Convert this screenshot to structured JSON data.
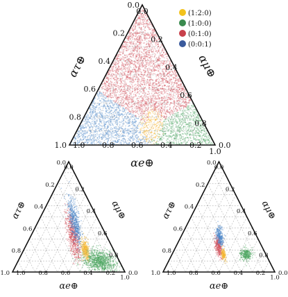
{
  "legend": [
    {
      "label": "(1:2:0)",
      "color": "#f2c21d"
    },
    {
      "label": "(1:0:0)",
      "color": "#3a8a4e"
    },
    {
      "label": "(0:1:0)",
      "color": "#c8414b"
    },
    {
      "label": "(0:0:1)",
      "color": "#3a5a9c"
    }
  ],
  "axes": {
    "bottom": "αe⊕",
    "left": "ατ⊕",
    "right": "αμ⊕"
  },
  "ticks": [
    "0.0",
    "0.2",
    "0.4",
    "0.6",
    "0.8",
    "1.0"
  ],
  "chart_data": [
    {
      "type": "scatter",
      "coordinate_system": "ternary",
      "axes": {
        "bottom": "αe⊕",
        "left": "ατ⊕",
        "right": "αμ⊕"
      },
      "ticks": [
        0.0,
        0.2,
        0.4,
        0.6,
        0.8,
        1.0
      ],
      "legend_placement": "top-right",
      "series": [
        {
          "name": "(1:2:0)",
          "color": "#f5b52e",
          "region": {
            "e_min": 0.4,
            "e_max": 0.6,
            "mu_min": 0.33,
            "mu_max": 0.55
          }
        },
        {
          "name": "(1:0:0)",
          "color": "#49a35e",
          "region": {
            "e_min": 0.5,
            "e_max": 1.0,
            "mu_min": 0.0,
            "mu_max": 0.45
          }
        },
        {
          "name": "(0:1:0)",
          "color": "#d24b57",
          "region": {
            "e_min": 0.0,
            "e_max": 0.5,
            "mu_min": 0.25,
            "mu_max": 1.0
          }
        },
        {
          "name": "(0:0:1)",
          "color": "#4a86c8",
          "region": {
            "e_min": 0.0,
            "e_max": 0.55,
            "mu_min": 0.0,
            "mu_max": 0.3
          }
        }
      ]
    },
    {
      "type": "scatter",
      "coordinate_system": "ternary",
      "axes": {
        "bottom": "αe⊕",
        "left": "ατ⊕",
        "right": "αμ⊕"
      },
      "ticks": [
        0.0,
        0.2,
        0.4,
        0.6,
        0.8,
        1.0
      ],
      "series": [
        {
          "name": "(1:0:0)",
          "color": "#49a35e",
          "center": {
            "e": 0.72,
            "mu": 0.18
          },
          "spread": "large"
        },
        {
          "name": "(0:1:0)",
          "color": "#d24b57",
          "center": {
            "e": 0.38,
            "mu": 0.3
          },
          "spread": "medium"
        },
        {
          "name": "(0:0:1)",
          "color": "#4a86c8",
          "center": {
            "e": 0.33,
            "mu": 0.22
          },
          "spread": "medium"
        },
        {
          "name": "(1:2:0)",
          "color": "#f5b52e",
          "center": {
            "e": 0.54,
            "mu": 0.25
          },
          "spread": "small"
        }
      ]
    },
    {
      "type": "scatter",
      "coordinate_system": "ternary",
      "axes": {
        "bottom": "αe⊕",
        "left": "ατ⊕",
        "right": "αμ⊕"
      },
      "ticks": [
        0.0,
        0.2,
        0.4,
        0.6,
        0.8,
        1.0
      ],
      "series": [
        {
          "name": "(1:0:0)",
          "color": "#49a35e",
          "center": {
            "e": 0.66,
            "mu": 0.18
          },
          "spread": "small"
        },
        {
          "name": "(0:1:0)",
          "color": "#d24b57",
          "center": {
            "e": 0.38,
            "mu": 0.39
          },
          "spread": "small"
        },
        {
          "name": "(0:0:1)",
          "color": "#4a86c8",
          "center": {
            "e": 0.35,
            "mu": 0.33
          },
          "spread": "small"
        },
        {
          "name": "(1:2:0)",
          "color": "#f5b52e",
          "center": {
            "e": 0.46,
            "mu": 0.38
          },
          "spread": "tiny"
        }
      ]
    }
  ]
}
